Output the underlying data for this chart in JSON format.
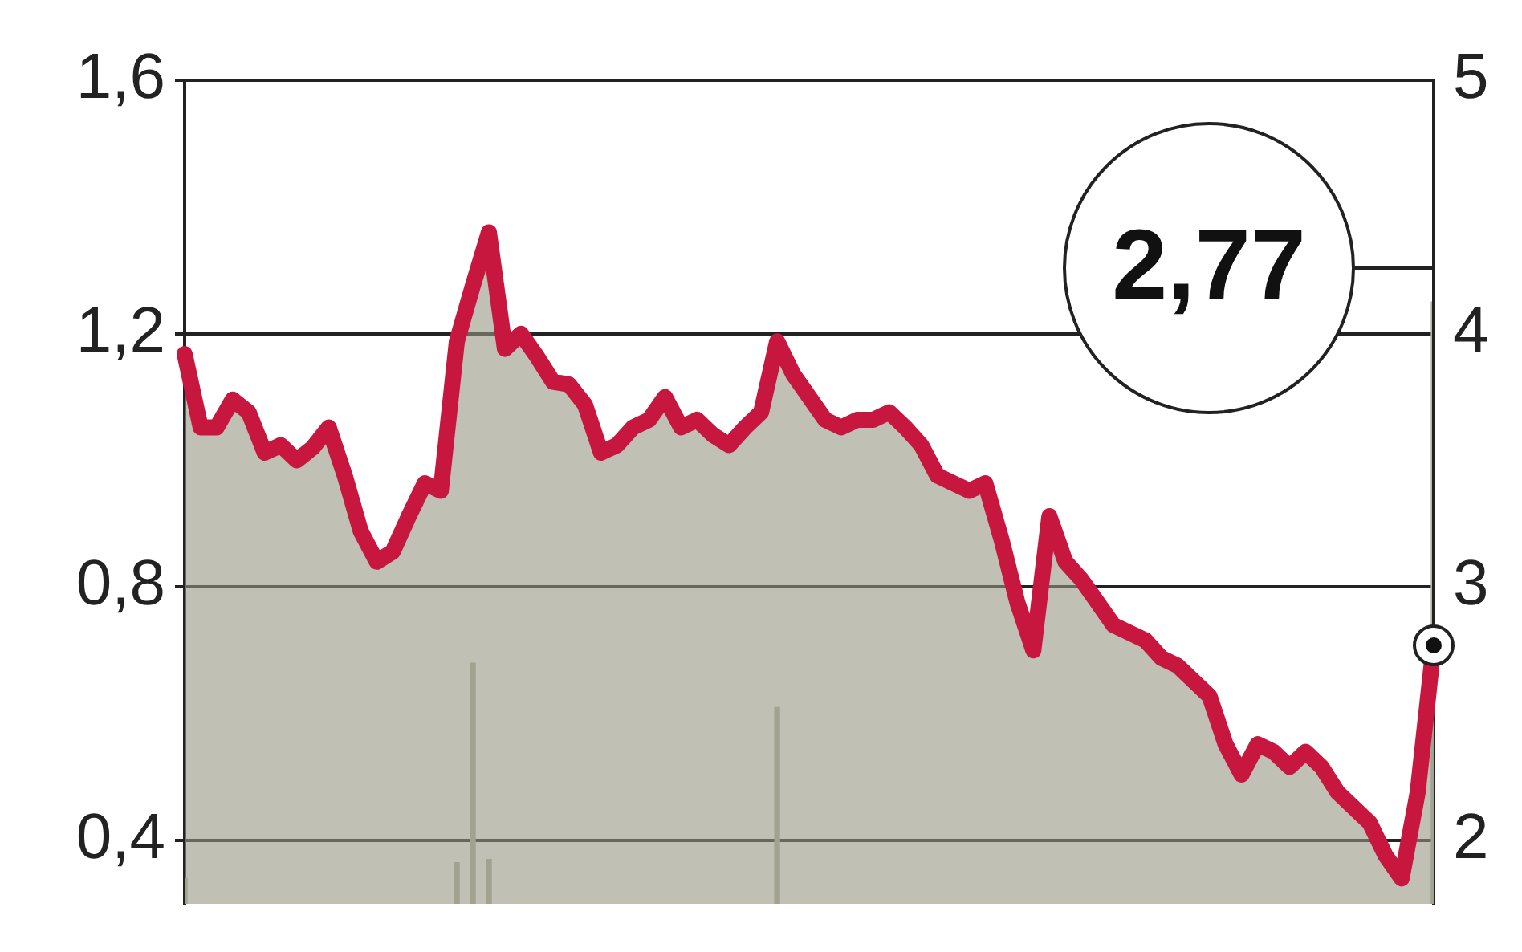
{
  "chart_data": {
    "type": "area",
    "categories": [
      null,
      null,
      null,
      null,
      null,
      null,
      null,
      null,
      null,
      null,
      null,
      null,
      null,
      null,
      null,
      null,
      null,
      null,
      null,
      null,
      null,
      null,
      null,
      null,
      null,
      null,
      null,
      null,
      null,
      null,
      null,
      null,
      null,
      null,
      null,
      null,
      null,
      null,
      null,
      null,
      null,
      null,
      null,
      null,
      null,
      null,
      null,
      null,
      null,
      null,
      null,
      null,
      null,
      null,
      null,
      null,
      null,
      null,
      null,
      null,
      null,
      null,
      null,
      null,
      null,
      null,
      null,
      null,
      null,
      null,
      null,
      null,
      null,
      null,
      null,
      null,
      null,
      null,
      null
    ],
    "series": [
      {
        "type": "bar",
        "color": "#b3b3a6",
        "axis": "y",
        "values": [
          0.34,
          null,
          null,
          null,
          null,
          null,
          null,
          null,
          null,
          null,
          null,
          null,
          null,
          null,
          null,
          null,
          null,
          0.365,
          0.68,
          0.37,
          null,
          null,
          null,
          null,
          null,
          null,
          null,
          null,
          null,
          null,
          null,
          null,
          null,
          null,
          null,
          null,
          null,
          0.61,
          null,
          null,
          null,
          null,
          null,
          null,
          null,
          null,
          null,
          null,
          null,
          null,
          null,
          null,
          null,
          null,
          null,
          null,
          null,
          null,
          null,
          null,
          null,
          null,
          null,
          null,
          null,
          null,
          null,
          null,
          null,
          null,
          null,
          null,
          null,
          null,
          null,
          null,
          null,
          null,
          1.25
        ]
      },
      {
        "color": "#c8173f",
        "axis": "y2",
        "values": [
          3.92,
          3.63,
          3.63,
          3.74,
          3.69,
          3.53,
          3.56,
          3.5,
          3.55,
          3.63,
          3.44,
          3.22,
          3.1,
          3.14,
          3.28,
          3.41,
          3.38,
          3.97,
          4.19,
          4.4,
          3.94,
          4.0,
          3.91,
          3.81,
          3.8,
          3.72,
          3.53,
          3.56,
          3.63,
          3.66,
          3.75,
          3.63,
          3.66,
          3.6,
          3.56,
          3.63,
          3.69,
          3.97,
          3.84,
          3.75,
          3.66,
          3.63,
          3.66,
          3.66,
          3.69,
          3.63,
          3.56,
          3.44,
          3.41,
          3.38,
          3.41,
          3.19,
          2.94,
          2.75,
          3.28,
          3.1,
          3.03,
          2.94,
          2.85,
          2.82,
          2.79,
          2.72,
          2.69,
          2.63,
          2.57,
          2.38,
          2.26,
          2.38,
          2.35,
          2.29,
          2.35,
          2.29,
          2.19,
          2.13,
          2.07,
          1.94,
          1.85,
          2.19,
          2.77
        ]
      }
    ],
    "ylim": [
      0.3,
      1.6
    ],
    "yticks": [
      {
        "value": 0.4,
        "label": "0,4"
      },
      {
        "value": 0.8,
        "label": "0,8"
      },
      {
        "value": 1.2,
        "label": "1,2"
      },
      {
        "value": 1.6,
        "label": "1,6"
      }
    ],
    "y2lim": [
      1.75,
      5
    ],
    "y2ticks": [
      2,
      3,
      4,
      5
    ],
    "grid": "y",
    "legend": false,
    "tick_labels": "y",
    "marker": "none",
    "annotations": [
      "2,77"
    ]
  }
}
